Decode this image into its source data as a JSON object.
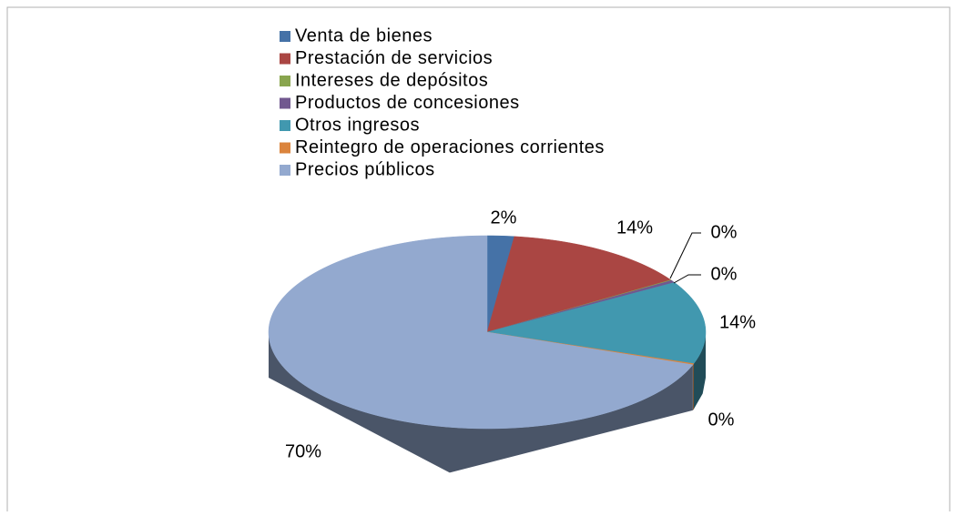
{
  "chart_data": {
    "type": "pie",
    "categories": [
      "Venta de bienes",
      "Prestación de servicios",
      "Intereses de depósitos",
      "Productos de concesiones",
      "Otros ingresos",
      "Reintegro de operaciones corrientes",
      "Precios públicos"
    ],
    "values": [
      2,
      14,
      0.1,
      0.4,
      14,
      0.2,
      70
    ],
    "value_labels": [
      "2%",
      "14%",
      "0%",
      "0%",
      "14%",
      "0%",
      "70%"
    ],
    "colors": [
      "#4572a7",
      "#aa4643",
      "#89a54e",
      "#71588f",
      "#4198af",
      "#db843d",
      "#93a9cf"
    ],
    "legend": "top"
  }
}
